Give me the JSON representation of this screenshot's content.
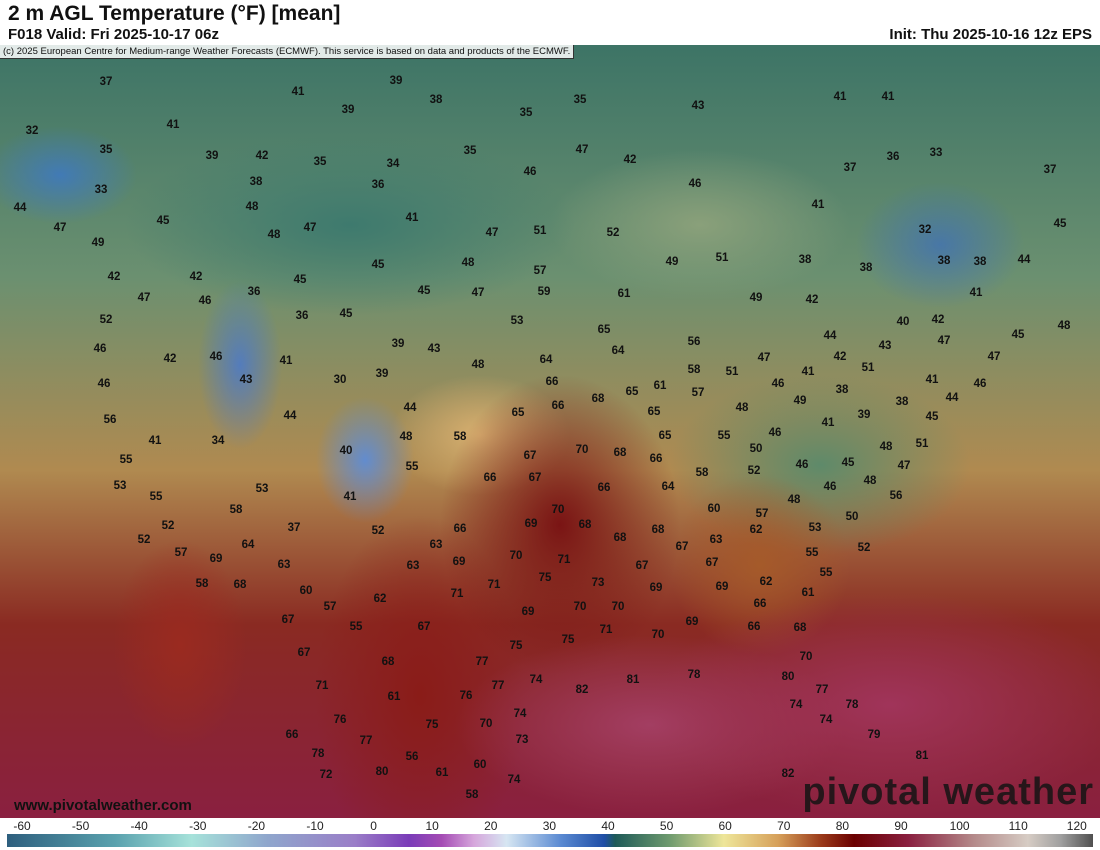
{
  "header": {
    "title": "2 m AGL Temperature (°F) [mean]",
    "valid": "F018 Valid: Fri 2025-10-17 06z",
    "init": "Init: Thu 2025-10-16 12z EPS"
  },
  "copyright": "(c) 2025 European Centre for Medium-range Weather Forecasts (ECMWF). This service is based on data and products of the ECMWF.",
  "footer": {
    "site": "www.pivotalweather.com",
    "watermark": "pivotal weather"
  },
  "map_labels": [
    "37",
    "39",
    "41",
    "38",
    "35",
    "32",
    "41",
    "39",
    "35",
    "43",
    "41",
    "41",
    "35",
    "39",
    "42",
    "35",
    "34",
    "35",
    "47",
    "42",
    "33",
    "38",
    "36",
    "46",
    "46",
    "37",
    "36",
    "33",
    "37",
    "44",
    "45",
    "48",
    "41",
    "48",
    "47",
    "47",
    "49",
    "47",
    "51",
    "52",
    "41",
    "45",
    "32",
    "49",
    "51",
    "38",
    "38",
    "38",
    "38",
    "44",
    "42",
    "42",
    "45",
    "45",
    "48",
    "57",
    "47",
    "46",
    "36",
    "36",
    "45",
    "45",
    "47",
    "59",
    "61",
    "49",
    "42",
    "41",
    "52",
    "53",
    "65",
    "40",
    "42",
    "45",
    "48",
    "46",
    "42",
    "46",
    "41",
    "39",
    "43",
    "64",
    "64",
    "56",
    "44",
    "43",
    "47",
    "47",
    "46",
    "43",
    "30",
    "39",
    "48",
    "66",
    "58",
    "51",
    "47",
    "41",
    "42",
    "51",
    "46",
    "61",
    "68",
    "65",
    "57",
    "38",
    "41",
    "46",
    "56",
    "44",
    "65",
    "66",
    "65",
    "48",
    "49",
    "38",
    "44",
    "44",
    "41",
    "34",
    "48",
    "58",
    "70",
    "68",
    "65",
    "55",
    "41",
    "39",
    "45",
    "55",
    "40",
    "55",
    "67",
    "50",
    "46",
    "48",
    "51",
    "66",
    "58",
    "52",
    "46",
    "45",
    "47",
    "53",
    "55",
    "53",
    "41",
    "66",
    "67",
    "66",
    "64",
    "48",
    "46",
    "48",
    "56",
    "58",
    "70",
    "60",
    "57",
    "52",
    "37",
    "52",
    "66",
    "69",
    "68",
    "53",
    "50",
    "52",
    "64",
    "63",
    "70",
    "71",
    "68",
    "68",
    "63",
    "62",
    "55",
    "52",
    "57",
    "69",
    "63",
    "63",
    "69",
    "67",
    "67",
    "67",
    "62",
    "55",
    "58",
    "68",
    "71",
    "75",
    "73",
    "69",
    "69",
    "66",
    "61",
    "60",
    "71",
    "62",
    "69",
    "70",
    "70",
    "69",
    "66",
    "68",
    "67",
    "57",
    "55",
    "67",
    "71",
    "70",
    "75",
    "75",
    "67",
    "70",
    "68",
    "77",
    "74",
    "82",
    "81",
    "78",
    "80",
    "77",
    "71",
    "61",
    "76",
    "77",
    "74",
    "78",
    "75",
    "70",
    "74",
    "74",
    "76",
    "79",
    "66",
    "77",
    "73",
    "78",
    "56",
    "81",
    "61",
    "60",
    "74",
    "72",
    "80",
    "82",
    "58"
  ],
  "colorbar": {
    "ticks": [
      "-60",
      "-50",
      "-40",
      "-30",
      "-20",
      "-10",
      "0",
      "10",
      "20",
      "30",
      "40",
      "50",
      "60",
      "70",
      "80",
      "90",
      "100",
      "110",
      "120"
    ]
  }
}
